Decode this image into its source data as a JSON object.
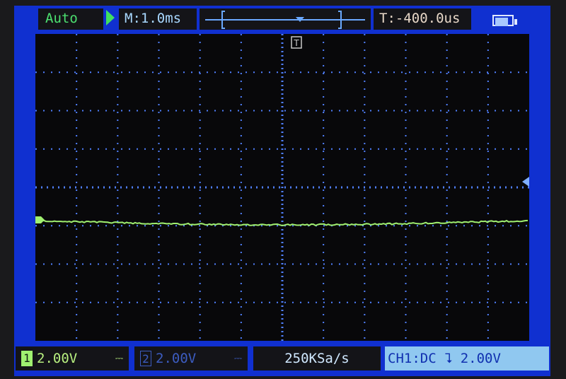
{
  "header": {
    "mode": "Auto",
    "run_state_icon": "play-icon",
    "timebase": "M:1.0ms",
    "trigger_time": "T:-400.0us",
    "battery_icon": "battery-icon"
  },
  "markers": {
    "trigger_top": "T"
  },
  "footer": {
    "ch1": {
      "number": "1",
      "scale": "2.00V",
      "coupling_symbol": "⎓"
    },
    "ch2": {
      "number": "2",
      "scale": "2.00V",
      "coupling_symbol": "⎓"
    },
    "sample_rate": "250KSa/s",
    "trigger_setting": "CH1:DC ⮧ 2.00V"
  },
  "colors": {
    "screen_bg": "#1030d0",
    "trace_ch1": "#a0f070",
    "grid": "#5080ff"
  }
}
